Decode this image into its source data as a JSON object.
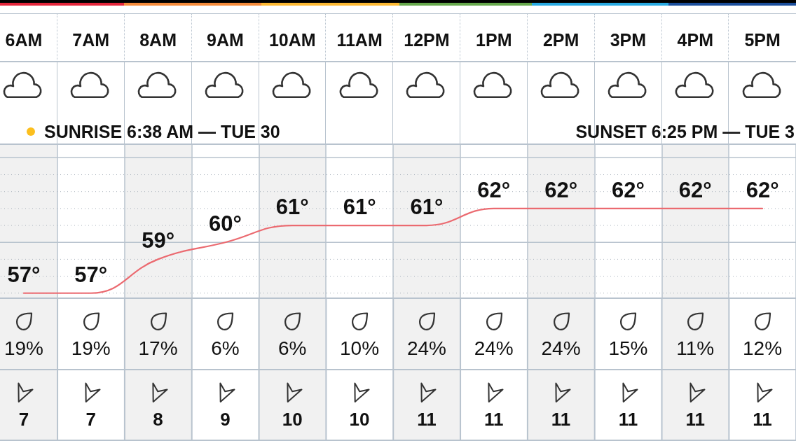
{
  "chart_data": [
    {
      "type": "line",
      "categories": [
        "6AM",
        "7AM",
        "8AM",
        "9AM",
        "10AM",
        "11AM",
        "12PM",
        "1PM",
        "2PM",
        "3PM",
        "4PM",
        "5PM"
      ],
      "values": [
        57,
        57,
        59,
        60,
        61,
        61,
        61,
        62,
        62,
        62,
        62,
        62
      ],
      "value_labels": [
        "57°",
        "57°",
        "59°",
        "60°",
        "61°",
        "61°",
        "61°",
        "62°",
        "62°",
        "62°",
        "62°",
        "62°"
      ],
      "color": "#eb6a70",
      "ylim": [
        56.7,
        65.8
      ],
      "yticks": [
        {
          "value": 57,
          "label": null
        },
        {
          "value": 58,
          "label": null
        },
        {
          "value": 59,
          "label": null
        },
        {
          "value": 60,
          "label": null
        },
        {
          "value": 61,
          "label": null
        },
        {
          "value": 62,
          "label": null
        },
        {
          "value": 63,
          "label": null
        },
        {
          "value": 64,
          "label": null
        },
        {
          "value": 65,
          "label": null
        }
      ],
      "grid": true,
      "tick_labels": "x",
      "annotations": [
        "SUNRISE 6:38 AM — TUE 30",
        "SUNSET 6:25 PM — TUE 3"
      ]
    },
    {
      "type": "other",
      "value_labels": [
        "19%",
        "19%",
        "17%",
        "6%",
        "6%",
        "10%",
        "24%",
        "24%",
        "24%",
        "15%",
        "11%",
        "12%"
      ]
    },
    {
      "type": "other",
      "values": [
        7,
        7,
        8,
        9,
        10,
        10,
        11,
        11,
        11,
        11,
        11,
        11
      ],
      "data_labels": true
    }
  ]
}
